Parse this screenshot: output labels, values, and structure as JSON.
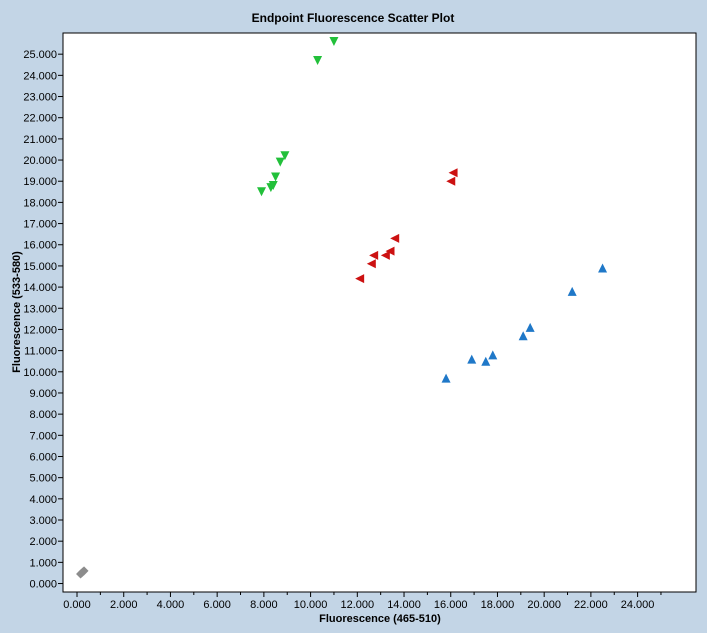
{
  "chart_data": {
    "type": "scatter",
    "title": "Endpoint Fluorescence Scatter Plot",
    "xlabel": "Fluorescence (465-510)",
    "ylabel": "Fluorescence (533-580)",
    "xlim": [
      -0.6,
      26.5
    ],
    "ylim": [
      -0.4,
      26.0
    ],
    "grid": false,
    "legend": "none",
    "x_ticks": [
      "0.000",
      "2.000",
      "4.000",
      "6.000",
      "8.000",
      "10.000",
      "12.000",
      "14.000",
      "16.000",
      "18.000",
      "20.000",
      "22.000",
      "24.000"
    ],
    "y_ticks": [
      "0.000",
      "1.000",
      "2.000",
      "3.000",
      "4.000",
      "5.000",
      "6.000",
      "7.000",
      "8.000",
      "9.000",
      "10.000",
      "11.000",
      "12.000",
      "13.000",
      "14.000",
      "15.000",
      "16.000",
      "17.000",
      "18.000",
      "19.000",
      "20.000",
      "21.000",
      "22.000",
      "23.000",
      "24.000",
      "25.000"
    ],
    "series": [
      {
        "marker": "triangle-down",
        "color": "#22c03a",
        "points": [
          [
            11.0,
            25.6
          ],
          [
            10.3,
            24.7
          ],
          [
            8.9,
            20.2
          ],
          [
            8.7,
            19.9
          ],
          [
            8.5,
            19.2
          ],
          [
            8.4,
            18.8
          ],
          [
            8.3,
            18.7
          ],
          [
            7.9,
            18.5
          ]
        ]
      },
      {
        "marker": "triangle-left",
        "color": "#cc1111",
        "points": [
          [
            16.1,
            19.4
          ],
          [
            16.0,
            19.0
          ],
          [
            13.6,
            16.3
          ],
          [
            13.4,
            15.7
          ],
          [
            13.2,
            15.5
          ],
          [
            12.7,
            15.5
          ],
          [
            12.6,
            15.1
          ],
          [
            12.1,
            14.4
          ]
        ]
      },
      {
        "marker": "triangle-up",
        "color": "#1f78c8",
        "points": [
          [
            22.5,
            14.9
          ],
          [
            21.2,
            13.8
          ],
          [
            19.4,
            12.1
          ],
          [
            19.1,
            11.7
          ],
          [
            17.8,
            10.8
          ],
          [
            16.9,
            10.6
          ],
          [
            17.5,
            10.5
          ],
          [
            15.8,
            9.7
          ]
        ]
      },
      {
        "marker": "diamond",
        "color": "#8c8c8c",
        "points": [
          [
            0.3,
            0.6
          ],
          [
            0.2,
            0.5
          ],
          [
            0.25,
            0.55
          ],
          [
            0.15,
            0.45
          ]
        ]
      }
    ]
  }
}
